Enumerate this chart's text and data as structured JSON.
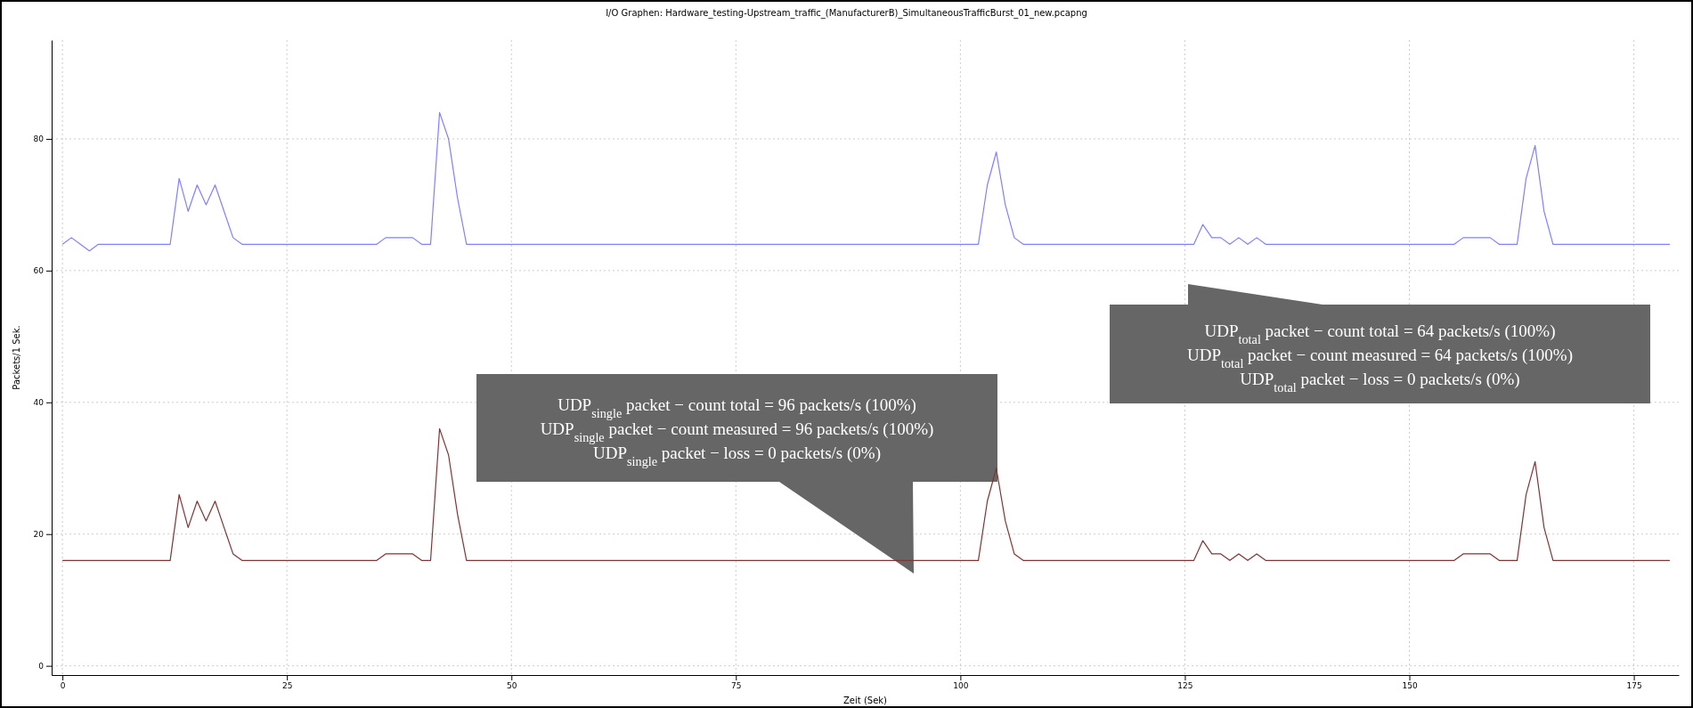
{
  "chart_data": {
    "type": "line",
    "title": "I/O Graphen: Hardware_testing-Upstream_traffic_(ManufacturerB)_SimultaneousTrafficBurst_01_new.pcapng",
    "xlabel": "Zeit (Sek)",
    "ylabel": "Packets/1 Sek.",
    "xlim": [
      -1.2,
      180
    ],
    "xticks": [
      0,
      25,
      50,
      75,
      100,
      125,
      150,
      175
    ],
    "ylim": [
      -1.4,
      95
    ],
    "yticks": [
      0,
      20,
      40,
      60,
      80
    ],
    "grid": true,
    "annotations": [
      "UDP$_{total}$ packet − count total  = 64 packets/s (100%)\nUDP$_{total}$ packet − count measured  = 64 packets/s (100%)\nUDP$_{total}$ packet − loss  = 0 packets/s (0%)",
      "UDP$_{single}$ packet − count total  = 96 packets/s (100%)\nUDP$_{single}$ packet − count measured  = 96 packets/s (100%)\nUDP$_{single}$ packet − loss  = 0 packets/s (0%)"
    ],
    "x": [
      0,
      1,
      2,
      3,
      4,
      5,
      6,
      7,
      8,
      9,
      10,
      11,
      12,
      13,
      14,
      15,
      16,
      17,
      18,
      19,
      20,
      21,
      22,
      23,
      24,
      25,
      26,
      27,
      28,
      29,
      30,
      31,
      32,
      33,
      34,
      35,
      36,
      37,
      38,
      39,
      40,
      41,
      42,
      43,
      44,
      45,
      46,
      47,
      48,
      49,
      50,
      51,
      52,
      53,
      54,
      55,
      56,
      57,
      58,
      59,
      60,
      61,
      62,
      63,
      64,
      65,
      66,
      67,
      68,
      69,
      70,
      71,
      72,
      73,
      74,
      75,
      76,
      77,
      78,
      79,
      80,
      81,
      82,
      83,
      84,
      85,
      86,
      87,
      88,
      89,
      90,
      91,
      92,
      93,
      94,
      95,
      96,
      97,
      98,
      99,
      100,
      101,
      102,
      103,
      104,
      105,
      106,
      107,
      108,
      109,
      110,
      111,
      112,
      113,
      114,
      115,
      116,
      117,
      118,
      119,
      120,
      121,
      122,
      123,
      124,
      125,
      126,
      127,
      128,
      129,
      130,
      131,
      132,
      133,
      134,
      135,
      136,
      137,
      138,
      139,
      140,
      141,
      142,
      143,
      144,
      145,
      146,
      147,
      148,
      149,
      150,
      151,
      152,
      153,
      154,
      155,
      156,
      157,
      158,
      159,
      160,
      161,
      162,
      163,
      164,
      165,
      166,
      167,
      168,
      169,
      170,
      171,
      172,
      173,
      174,
      175,
      176,
      177,
      178,
      179
    ],
    "series": [
      {
        "color": "#8080ff",
        "values": [
          64,
          65,
          64,
          63,
          64,
          64,
          64,
          64,
          64,
          64,
          64,
          64,
          64,
          74,
          69,
          73,
          70,
          73,
          69,
          65,
          64,
          64,
          64,
          64,
          64,
          64,
          64,
          64,
          64,
          64,
          64,
          64,
          64,
          64,
          64,
          64,
          65,
          65,
          65,
          65,
          64,
          64,
          84,
          80,
          71,
          64,
          64,
          64,
          64,
          64,
          64,
          64,
          64,
          64,
          64,
          64,
          64,
          64,
          64,
          64,
          64,
          64,
          64,
          64,
          64,
          64,
          64,
          64,
          64,
          64,
          64,
          64,
          64,
          64,
          64,
          64,
          64,
          64,
          64,
          64,
          64,
          64,
          64,
          64,
          64,
          64,
          64,
          64,
          64,
          64,
          64,
          64,
          64,
          64,
          64,
          64,
          64,
          64,
          64,
          64,
          64,
          64,
          64,
          73,
          78,
          70,
          65,
          64,
          64,
          64,
          64,
          64,
          64,
          64,
          64,
          64,
          64,
          64,
          64,
          64,
          64,
          64,
          64,
          64,
          64,
          64,
          64,
          67,
          65,
          65,
          64,
          65,
          64,
          65,
          64,
          64,
          64,
          64,
          64,
          64,
          64,
          64,
          64,
          64,
          64,
          64,
          64,
          64,
          64,
          64,
          64,
          64,
          64,
          64,
          64,
          64,
          65,
          65,
          65,
          65,
          64,
          64,
          64,
          74,
          79,
          69,
          64,
          64,
          64,
          64,
          64,
          64,
          64,
          64,
          64,
          64,
          64,
          64,
          64,
          64
        ]
      },
      {
        "color": "#7f3535",
        "values": [
          16,
          16,
          16,
          16,
          16,
          16,
          16,
          16,
          16,
          16,
          16,
          16,
          16,
          26,
          21,
          25,
          22,
          25,
          21,
          17,
          16,
          16,
          16,
          16,
          16,
          16,
          16,
          16,
          16,
          16,
          16,
          16,
          16,
          16,
          16,
          16,
          17,
          17,
          17,
          17,
          16,
          16,
          36,
          32,
          23,
          16,
          16,
          16,
          16,
          16,
          16,
          16,
          16,
          16,
          16,
          16,
          16,
          16,
          16,
          16,
          16,
          16,
          16,
          16,
          16,
          16,
          16,
          16,
          16,
          16,
          16,
          16,
          16,
          16,
          16,
          16,
          16,
          16,
          16,
          16,
          16,
          16,
          16,
          16,
          16,
          16,
          16,
          16,
          16,
          16,
          16,
          16,
          16,
          16,
          16,
          16,
          16,
          16,
          16,
          16,
          16,
          16,
          16,
          25,
          30,
          22,
          17,
          16,
          16,
          16,
          16,
          16,
          16,
          16,
          16,
          16,
          16,
          16,
          16,
          16,
          16,
          16,
          16,
          16,
          16,
          16,
          16,
          19,
          17,
          17,
          16,
          17,
          16,
          17,
          16,
          16,
          16,
          16,
          16,
          16,
          16,
          16,
          16,
          16,
          16,
          16,
          16,
          16,
          16,
          16,
          16,
          16,
          16,
          16,
          16,
          16,
          17,
          17,
          17,
          17,
          16,
          16,
          16,
          26,
          31,
          21,
          16,
          16,
          16,
          16,
          16,
          16,
          16,
          16,
          16,
          16,
          16,
          16,
          16,
          16
        ]
      }
    ]
  }
}
